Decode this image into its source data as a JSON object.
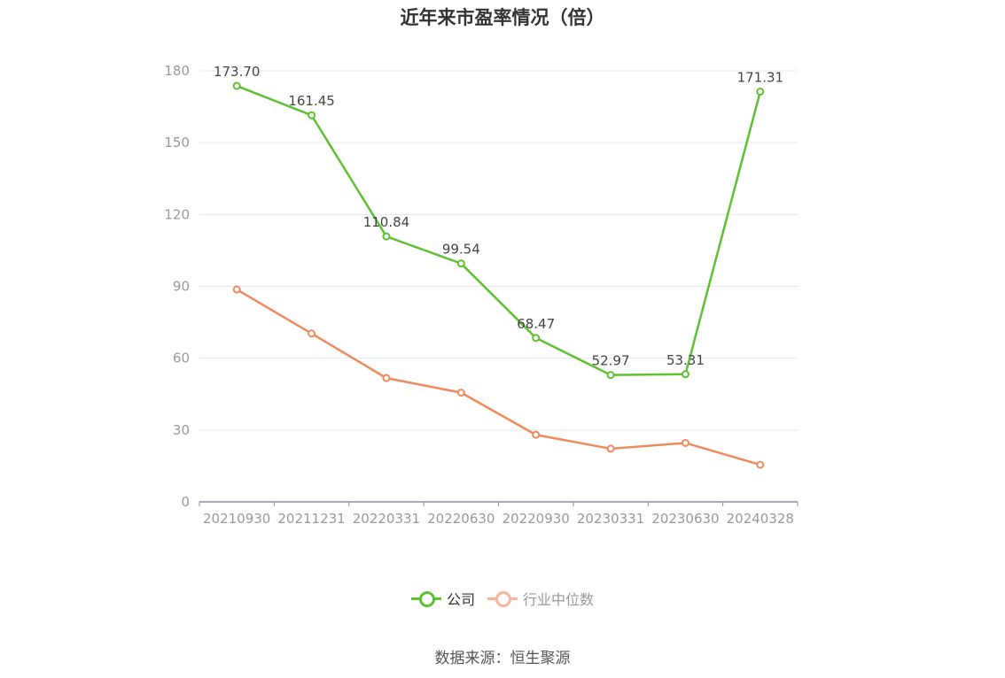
{
  "chart_data": {
    "type": "line",
    "title": "近年来市盈率情况（倍）",
    "categories": [
      "20210930",
      "20211231",
      "20220331",
      "20220630",
      "20220930",
      "20230331",
      "20230630",
      "20240328"
    ],
    "series": [
      {
        "name": "公司",
        "color": "#5dc130",
        "values": [
          173.7,
          161.45,
          110.84,
          99.54,
          68.47,
          52.97,
          53.31,
          171.31
        ],
        "labels": [
          "173.70",
          "161.45",
          "110.84",
          "99.54",
          "68.47",
          "52.97",
          "53.31",
          "171.31"
        ],
        "show_labels": true
      },
      {
        "name": "行业中位数",
        "color": "#f08a5d",
        "values": [
          88.7,
          70.3,
          51.7,
          45.6,
          28.0,
          22.2,
          24.6,
          15.5
        ],
        "show_labels": false
      }
    ],
    "yticks": [
      "0",
      "30",
      "60",
      "90",
      "120",
      "150",
      "180"
    ],
    "ylim": [
      0,
      180
    ],
    "grid": true,
    "legend": "bottom-center",
    "xlabel": "",
    "ylabel": ""
  },
  "legend_colors": {
    "company": "#5dc130",
    "industry_median": "#f7b49c"
  },
  "legend_text_colors": {
    "company": "#333333",
    "industry_median": "#999999"
  },
  "source": "数据来源：恒生聚源"
}
